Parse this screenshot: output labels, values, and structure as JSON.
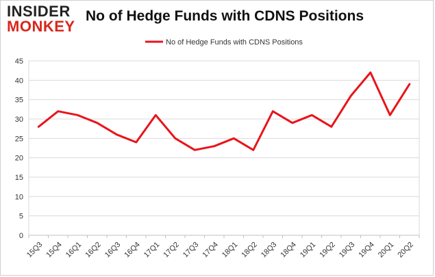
{
  "logo": {
    "top": "INSIDER",
    "bottom": "MONKEY"
  },
  "chart_data": {
    "type": "line",
    "title": "No of Hedge Funds with CDNS Positions",
    "categories": [
      "15Q3",
      "15Q4",
      "16Q1",
      "16Q2",
      "16Q3",
      "16Q4",
      "17Q1",
      "17Q2",
      "17Q3",
      "17Q4",
      "18Q1",
      "18Q2",
      "18Q3",
      "18Q4",
      "19Q1",
      "19Q2",
      "19Q3",
      "19Q4",
      "20Q1",
      "20Q2"
    ],
    "series": [
      {
        "name": "No of Hedge Funds with CDNS Positions",
        "values": [
          28,
          32,
          31,
          29,
          26,
          24,
          31,
          25,
          22,
          23,
          25,
          22,
          32,
          29,
          31,
          28,
          36,
          42,
          31,
          39
        ],
        "color": "#e8141b"
      }
    ],
    "ylim": [
      0,
      45
    ],
    "yticks": [
      0,
      5,
      10,
      15,
      20,
      25,
      30,
      35,
      40,
      45
    ],
    "grid": true,
    "legend_position": "top-center",
    "xlabel": "",
    "ylabel": ""
  }
}
